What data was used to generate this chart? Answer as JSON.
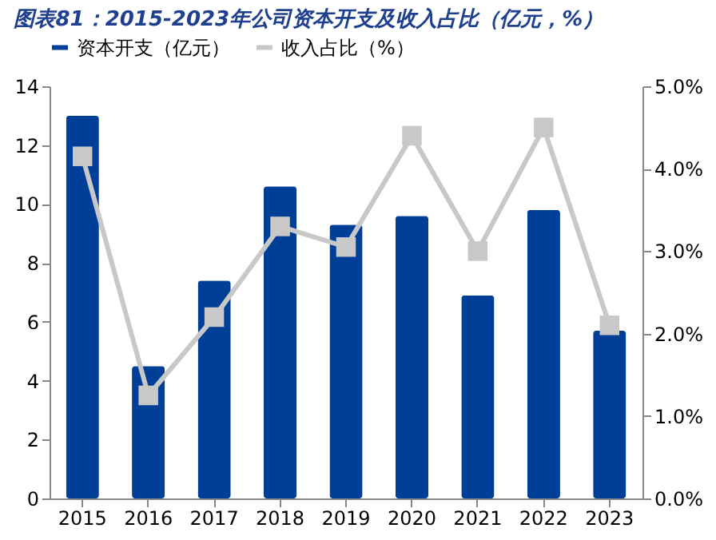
{
  "chart_data": {
    "type": "bar",
    "title": "图表81：2015-2023年公司资本开支及收入占比（亿元，%）",
    "categories": [
      "2015",
      "2016",
      "2017",
      "2018",
      "2019",
      "2020",
      "2021",
      "2022",
      "2023"
    ],
    "series": [
      {
        "name": "资本开支（亿元）",
        "type": "bar",
        "color": "#003f98",
        "values": [
          13.0,
          4.5,
          7.4,
          10.6,
          9.3,
          9.6,
          6.9,
          9.8,
          5.7
        ]
      },
      {
        "name": "收入占比（%）",
        "type": "line",
        "axis": "y2",
        "color": "#c8c8c8",
        "values": [
          4.15,
          1.25,
          2.2,
          3.3,
          3.05,
          4.4,
          3.0,
          4.5,
          2.1
        ]
      }
    ],
    "ylim": [
      0,
      14
    ],
    "yticks": [
      0,
      2,
      4,
      6,
      8,
      10,
      12,
      14
    ],
    "y2lim": [
      0,
      5
    ],
    "y2ticks": [
      {
        "value": 0,
        "label": "0.0%"
      },
      {
        "value": 1,
        "label": "1.0%"
      },
      {
        "value": 2,
        "label": "2.0%"
      },
      {
        "value": 3,
        "label": "3.0%"
      },
      {
        "value": 4,
        "label": "4.0%"
      },
      {
        "value": 5,
        "label": "5.0%"
      }
    ],
    "marker": "square",
    "line_style": "solid",
    "grid": false,
    "legend": "top"
  }
}
